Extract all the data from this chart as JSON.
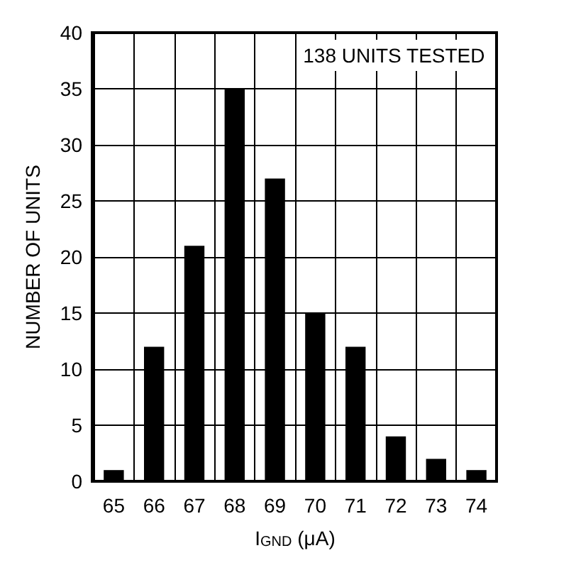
{
  "chart_data": {
    "type": "bar",
    "categories": [
      "65",
      "66",
      "67",
      "68",
      "69",
      "70",
      "71",
      "72",
      "73",
      "74"
    ],
    "values": [
      1,
      12,
      21,
      35,
      27,
      15,
      12,
      4,
      2,
      1
    ],
    "color": "#000000",
    "xlabel": "I$_{GND}$ (μA)",
    "ylabel": "NUMBER OF UNITS",
    "ylim": [
      0,
      40
    ],
    "yticks": [
      0,
      5,
      10,
      15,
      20,
      25,
      30,
      35,
      40
    ],
    "grid": true,
    "annotations": [
      "138 UNITS TESTED"
    ]
  }
}
